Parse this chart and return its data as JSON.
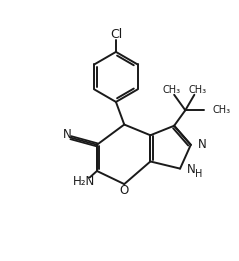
{
  "figsize": [
    2.39,
    2.61
  ],
  "dpi": 100,
  "bg_color": "#ffffff",
  "line_color": "#1a1a1a",
  "line_width": 1.4,
  "font_size": 8.5,
  "xlim": [
    0,
    10
  ],
  "ylim": [
    0,
    10.9
  ]
}
